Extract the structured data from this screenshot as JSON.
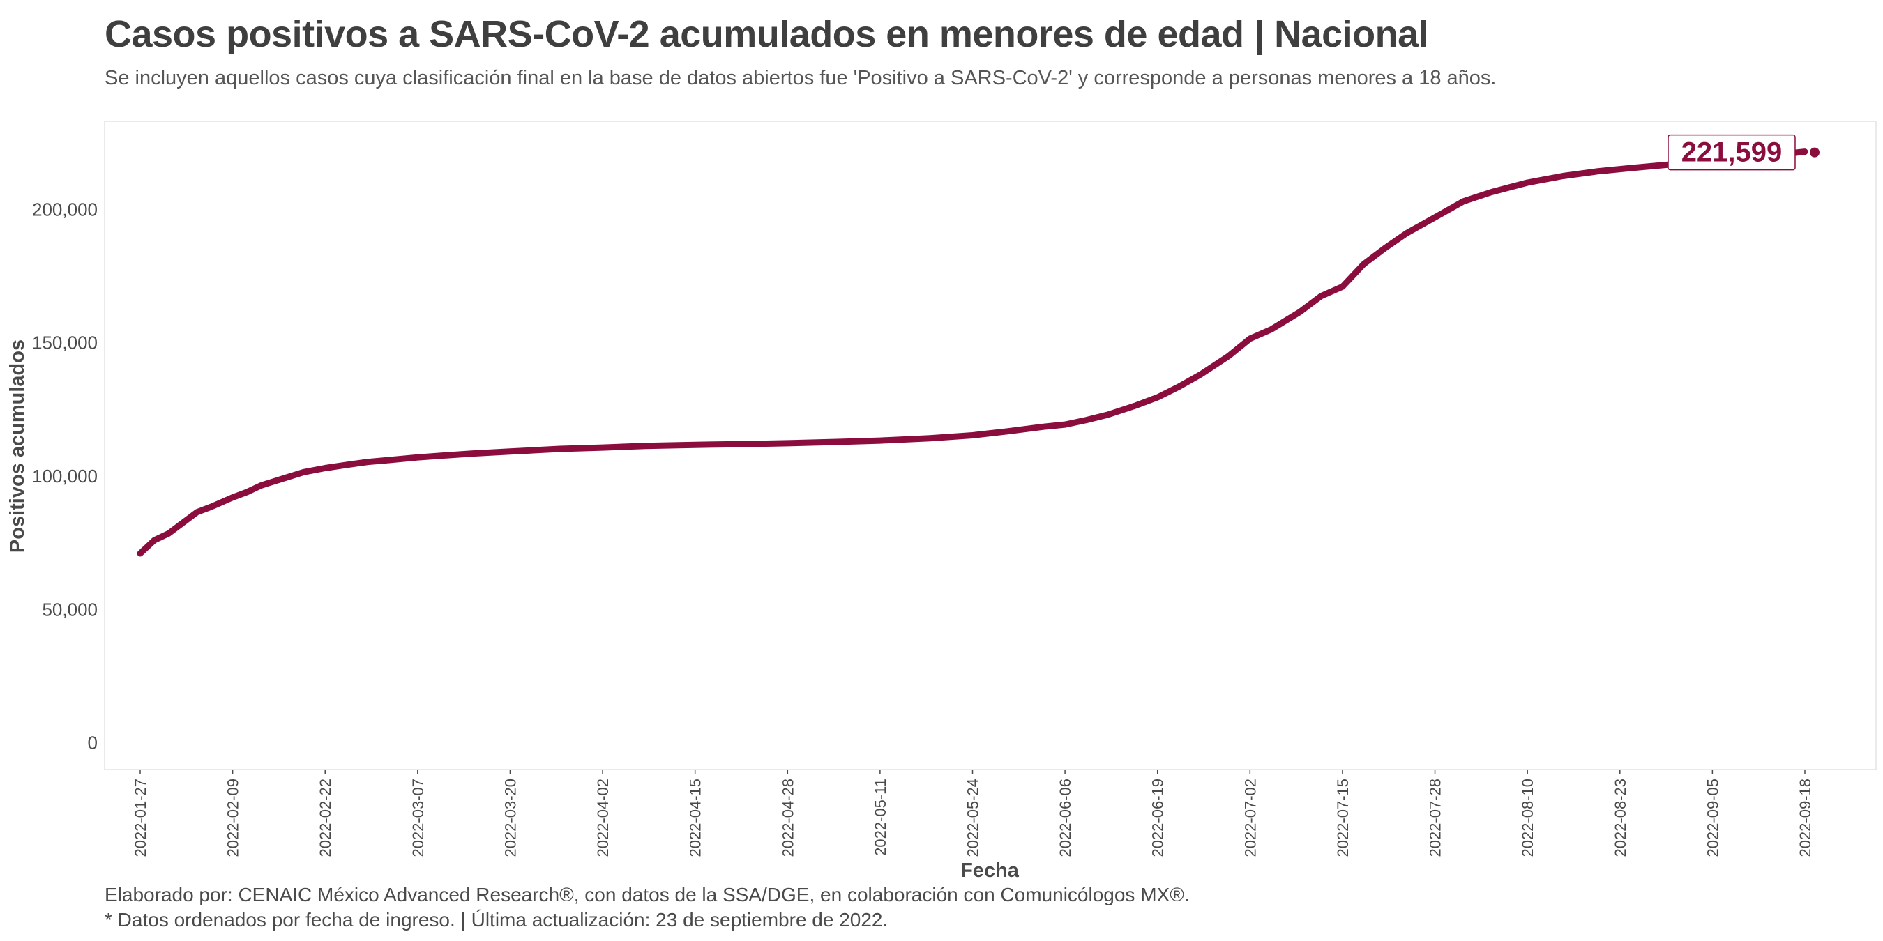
{
  "header": {
    "title": "Casos positivos a SARS-CoV-2 acumulados en menores de edad | Nacional",
    "subtitle": "Se incluyen aquellos casos cuya clasificación final en la base de datos abiertos fue 'Positivo a SARS-CoV-2' y corresponde a personas menores a 18 años."
  },
  "footer": {
    "credit": "Elaborado por: CENAIC México Advanced Research®, con datos de la SSA/DGE, en colaboración con Comunicólogos MX®.",
    "note": "* Datos ordenados por fecha de ingreso. | Última actualización: 23 de septiembre de 2022."
  },
  "colors": {
    "series": "#8b0d3d",
    "text": "#4a4a4a",
    "panel_border": "#e3e3e3"
  },
  "chart_data": {
    "type": "line",
    "title": "Casos positivos a SARS-CoV-2 acumulados en menores de edad | Nacional",
    "xlabel": "Fecha",
    "ylabel": "Positivos acumulados",
    "ylim": [
      -10000,
      233000
    ],
    "xlim": [
      "2022-01-22",
      "2022-09-28"
    ],
    "grid": false,
    "legend": "none",
    "y_ticks": [
      {
        "value": 0,
        "label": "0"
      },
      {
        "value": 50000,
        "label": "50,000"
      },
      {
        "value": 100000,
        "label": "100,000"
      },
      {
        "value": 150000,
        "label": "150,000"
      },
      {
        "value": 200000,
        "label": "200,000"
      }
    ],
    "x_ticks": [
      "2022-01-27",
      "2022-02-09",
      "2022-02-22",
      "2022-03-07",
      "2022-03-20",
      "2022-04-02",
      "2022-04-15",
      "2022-04-28",
      "2022-05-11",
      "2022-05-24",
      "2022-06-06",
      "2022-06-19",
      "2022-07-02",
      "2022-07-15",
      "2022-07-28",
      "2022-08-10",
      "2022-08-23",
      "2022-09-05",
      "2022-09-18"
    ],
    "last_label": "221,599",
    "series": [
      {
        "x": [
          "2022-01-27",
          "2022-01-29",
          "2022-01-31",
          "2022-02-02",
          "2022-02-04",
          "2022-02-06",
          "2022-02-09",
          "2022-02-11",
          "2022-02-13",
          "2022-02-16",
          "2022-02-19",
          "2022-02-22",
          "2022-02-25",
          "2022-02-28",
          "2022-03-03",
          "2022-03-07",
          "2022-03-11",
          "2022-03-15",
          "2022-03-20",
          "2022-03-27",
          "2022-04-02",
          "2022-04-08",
          "2022-04-15",
          "2022-04-22",
          "2022-04-28",
          "2022-05-05",
          "2022-05-11",
          "2022-05-18",
          "2022-05-24",
          "2022-05-29",
          "2022-06-03",
          "2022-06-06",
          "2022-06-09",
          "2022-06-12",
          "2022-06-16",
          "2022-06-19",
          "2022-06-22",
          "2022-06-25",
          "2022-06-29",
          "2022-07-02",
          "2022-07-05",
          "2022-07-09",
          "2022-07-12",
          "2022-07-15",
          "2022-07-18",
          "2022-07-21",
          "2022-07-24",
          "2022-07-28",
          "2022-08-01",
          "2022-08-05",
          "2022-08-10",
          "2022-08-15",
          "2022-08-20",
          "2022-08-25",
          "2022-08-30",
          "2022-09-04",
          "2022-09-09",
          "2022-09-14",
          "2022-09-18"
        ],
        "y": [
          71000,
          76000,
          78500,
          82500,
          86500,
          88500,
          92000,
          94000,
          96500,
          99000,
          101500,
          103000,
          104200,
          105300,
          106000,
          107000,
          107800,
          108500,
          109200,
          110200,
          110700,
          111300,
          111700,
          112000,
          112300,
          112800,
          113300,
          114200,
          115300,
          116800,
          118500,
          119300,
          121000,
          123000,
          126500,
          129500,
          133500,
          138000,
          145000,
          151500,
          155000,
          161500,
          167500,
          171000,
          179500,
          185500,
          191000,
          197000,
          203000,
          206500,
          210000,
          212500,
          214300,
          215600,
          216800,
          217800,
          218800,
          220500,
          221599
        ]
      }
    ]
  }
}
